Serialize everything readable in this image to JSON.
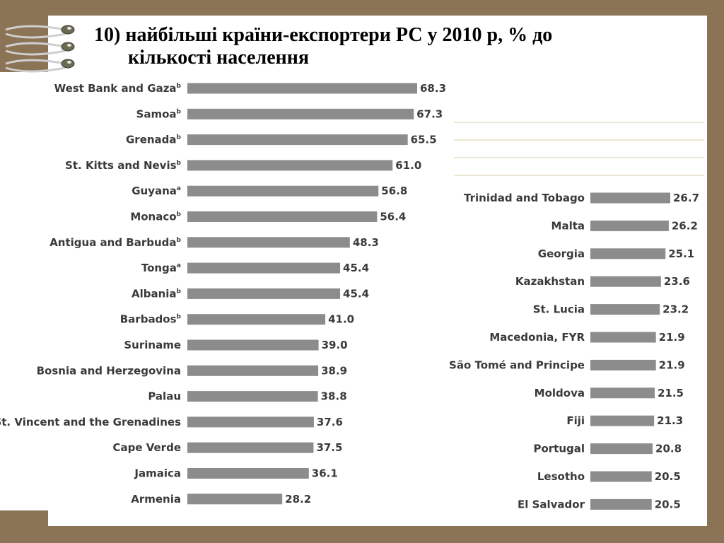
{
  "title": {
    "line1": "10) найбільші країни-експортери РС у 2010 р,  % до",
    "line2": "кількості населення"
  },
  "colors": {
    "background": "#8b7355",
    "bar": "#8c8c8c",
    "text": "#3a3a3a",
    "rule": "#d8d0a8"
  },
  "chart_data": [
    {
      "type": "bar",
      "orientation": "horizontal",
      "categories": [
        "West Bank and Gaza",
        "Samoa",
        "Grenada",
        "St. Kitts and Nevis",
        "Guyana",
        "Monaco",
        "Antigua and Barbuda",
        "Tonga",
        "Albania",
        "Barbados",
        "Suriname",
        "Bosnia and Herzegovina",
        "Palau",
        "St. Vincent and the Grenadines",
        "Cape Verde",
        "Jamaica",
        "Armenia"
      ],
      "superscripts": [
        "b",
        "b",
        "b",
        "b",
        "a",
        "b",
        "b",
        "a",
        "b",
        "b",
        "",
        "",
        "",
        "",
        "",
        "",
        ""
      ],
      "values": [
        68.3,
        67.3,
        65.5,
        61.0,
        56.8,
        56.4,
        48.3,
        45.4,
        45.4,
        41.0,
        39.0,
        38.9,
        38.8,
        37.6,
        37.5,
        36.1,
        28.2
      ],
      "value_labels": [
        "68.3",
        "67.3",
        "65.5",
        "61.0",
        "56.8",
        "56.4",
        "48.3",
        "45.4",
        "45.4",
        "41.0",
        "39.0",
        "38.9",
        "38.8",
        "37.6",
        "37.5",
        "36.1",
        "28.2"
      ]
    },
    {
      "type": "bar",
      "orientation": "horizontal",
      "categories": [
        "Trinidad and Tobago",
        "Malta",
        "Georgia",
        "Kazakhstan",
        "St. Lucia",
        "Macedonia, FYR",
        "São Tomé and Principe",
        "Moldova",
        "Fiji",
        "Portugal",
        "Lesotho",
        "El Salvador"
      ],
      "superscripts": [
        "",
        "",
        "",
        "",
        "",
        "",
        "",
        "",
        "",
        "",
        "",
        ""
      ],
      "values": [
        26.7,
        26.2,
        25.1,
        23.6,
        23.2,
        21.9,
        21.9,
        21.5,
        21.3,
        20.8,
        20.5,
        20.5
      ],
      "value_labels": [
        "26.7",
        "26.2",
        "25.1",
        "23.6",
        "23.2",
        "21.9",
        "21.9",
        "21.5",
        "21.3",
        "20.8",
        "20.5",
        "20.5"
      ]
    }
  ]
}
